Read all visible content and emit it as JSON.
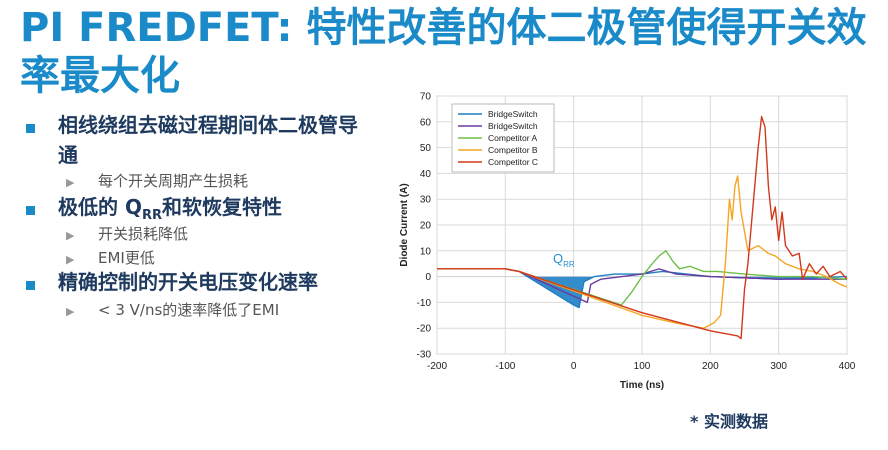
{
  "slide": {
    "title": "PI FREDFET: 特性改善的体二极管使得开关效率最大化",
    "bullets": [
      {
        "text": "相线绕组去磁过程期间体二极管导通",
        "subs": [
          "每个开关周期产生损耗"
        ]
      },
      {
        "text": "极低的 Q",
        "sub": "RR",
        "text_after": "和软恢复特性",
        "subs": [
          "开关损耗降低",
          "EMI更低"
        ]
      },
      {
        "text": "精确控制的开关电压变化速率",
        "subs": [
          "< 3 V/ns的速率降低了EMI"
        ]
      }
    ],
    "footnote": "* 实测数据"
  },
  "chart_data": {
    "type": "line",
    "xlabel": "Time (ns)",
    "ylabel": "Diode Current (A)",
    "xlim": [
      -200,
      400
    ],
    "xticks": [
      -200,
      -100,
      0,
      100,
      200,
      300,
      400
    ],
    "ylim": [
      -30,
      70
    ],
    "yticks": [
      -30,
      -20,
      -10,
      0,
      10,
      20,
      30,
      40,
      50,
      60,
      70
    ],
    "grid": true,
    "legend": "top-left",
    "annotation": {
      "text": "Q",
      "sub": "RR"
    },
    "series": [
      {
        "name": "BridgeSwitch",
        "color": "#1f7fc4",
        "fill": true,
        "x": [
          -200,
          -100,
          -80,
          0,
          8,
          15,
          30,
          60,
          100,
          130,
          200,
          300,
          400
        ],
        "values": [
          3,
          3,
          2,
          -11,
          -12,
          -2,
          0,
          1,
          1,
          2,
          0,
          -1,
          0
        ]
      },
      {
        "name": "BridgeSwitch",
        "color": "#6a3aa0",
        "x": [
          -200,
          -100,
          -80,
          20,
          25,
          40,
          100,
          125,
          150,
          200,
          300,
          400
        ],
        "values": [
          3,
          3,
          2,
          -10,
          -3,
          -1,
          1,
          3,
          1,
          0,
          -1,
          -1
        ]
      },
      {
        "name": "Competitor A",
        "color": "#6fbf4a",
        "x": [
          -200,
          -100,
          -80,
          70,
          85,
          100,
          115,
          125,
          135,
          145,
          155,
          170,
          190,
          210,
          250,
          300,
          350,
          400
        ],
        "values": [
          3,
          3,
          2,
          -11,
          -6,
          0,
          5,
          8,
          10,
          6,
          3,
          4,
          2,
          2,
          1,
          0,
          0,
          -1
        ]
      },
      {
        "name": "Competitor B",
        "color": "#f5a623",
        "x": [
          -200,
          -100,
          -80,
          100,
          150,
          190,
          205,
          215,
          222,
          228,
          232,
          236,
          240,
          245,
          255,
          270,
          285,
          295,
          310,
          330,
          350,
          370,
          390,
          400
        ],
        "values": [
          3,
          3,
          2,
          -15,
          -18,
          -20,
          -18,
          -15,
          5,
          30,
          22,
          35,
          39,
          25,
          10,
          12,
          9,
          8,
          5,
          3,
          2,
          0,
          -3,
          -4
        ]
      },
      {
        "name": "Competitor C",
        "color": "#d2381c",
        "x": [
          -200,
          -100,
          -80,
          100,
          200,
          240,
          245,
          250,
          255,
          260,
          265,
          270,
          275,
          280,
          285,
          290,
          295,
          300,
          305,
          310,
          320,
          330,
          335,
          345,
          355,
          365,
          375,
          390,
          400
        ],
        "values": [
          3,
          3,
          2,
          -14,
          -21,
          -23,
          -24,
          -5,
          5,
          20,
          35,
          50,
          62,
          58,
          35,
          22,
          27,
          14,
          25,
          12,
          8,
          9,
          -1,
          5,
          1,
          4,
          0,
          2,
          -1
        ]
      }
    ]
  }
}
